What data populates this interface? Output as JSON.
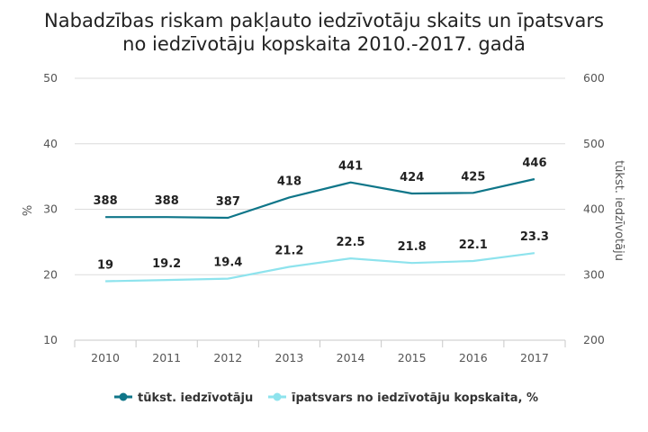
{
  "chart_data": {
    "type": "line",
    "title_lines": [
      "Nabadzības riskam pakļauto iedzīvotāju skaits un īpatsvars",
      "no iedzīvotāju kopskaita 2010.-2017. gadā"
    ],
    "categories": [
      "2010",
      "2011",
      "2012",
      "2013",
      "2014",
      "2015",
      "2016",
      "2017"
    ],
    "left_axis": {
      "label": "%",
      "min": 10,
      "max": 50,
      "ticks": [
        "10",
        "20",
        "30",
        "40",
        "50"
      ]
    },
    "right_axis": {
      "label": "tūkst. iedzīvotāju",
      "min": 200,
      "max": 600,
      "ticks": [
        "200",
        "300",
        "400",
        "500",
        "600"
      ]
    },
    "series": [
      {
        "name": "tūkst. iedzīvotāju",
        "axis": "right",
        "color": "#0f7689",
        "values": [
          388,
          388,
          387,
          418,
          441,
          424,
          425,
          446
        ],
        "labels": [
          "388",
          "388",
          "387",
          "418",
          "441",
          "424",
          "425",
          "446"
        ]
      },
      {
        "name": "īpatsvars no iedzīvotāju kopskaita, %",
        "axis": "left",
        "color": "#8ee3ed",
        "values": [
          19,
          19.2,
          19.4,
          21.2,
          22.5,
          21.8,
          22.1,
          23.3
        ],
        "labels": [
          "19",
          "19.2",
          "19.4",
          "21.2",
          "22.5",
          "21.8",
          "22.1",
          "23.3"
        ]
      }
    ],
    "grid": true,
    "legend_position": "bottom"
  }
}
